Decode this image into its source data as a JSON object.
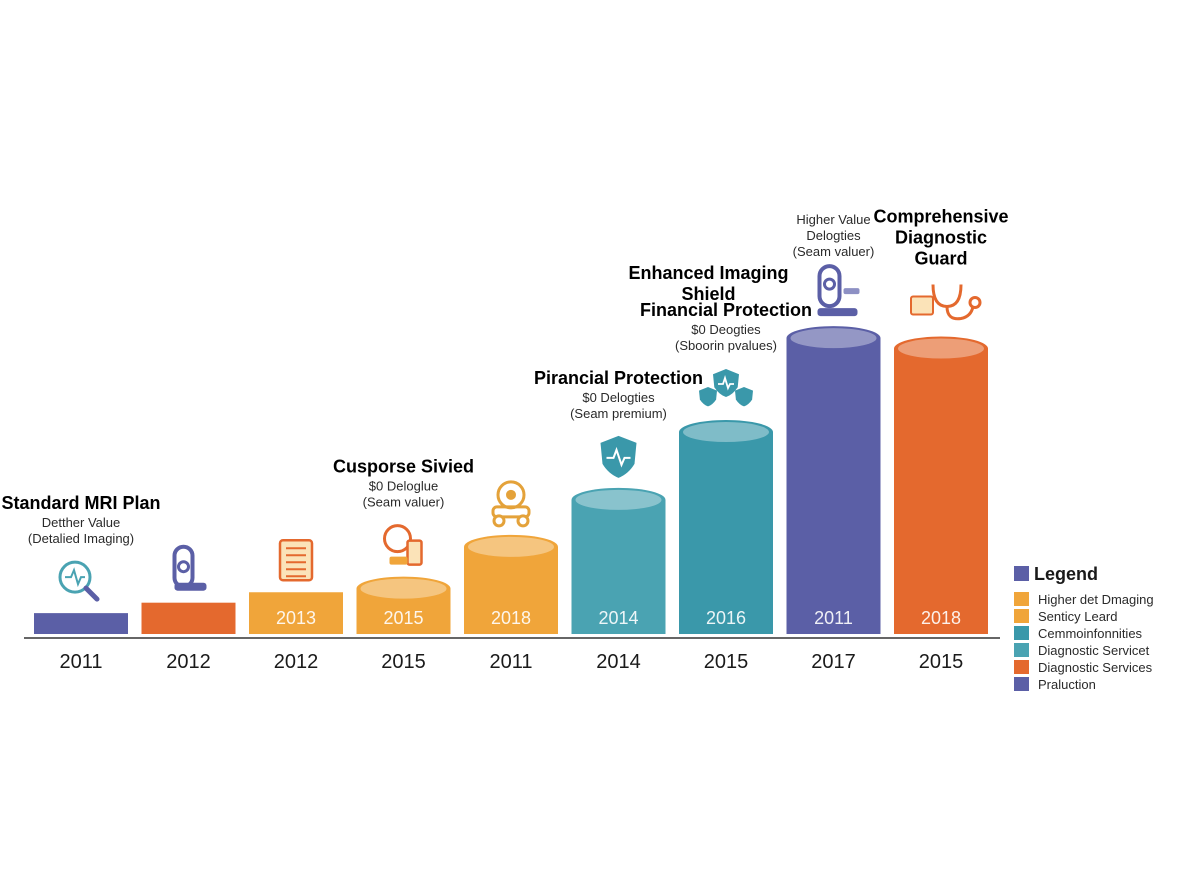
{
  "chart_data": {
    "type": "bar",
    "title": "",
    "xlabel": "",
    "ylabel": "",
    "categories": [
      "2011",
      "2012",
      "2012",
      "2015",
      "2011",
      "2014",
      "2015",
      "2017",
      "2015"
    ],
    "bar_labels": [
      "",
      "",
      "2013",
      "2015",
      "2018",
      "2014",
      "2016",
      "2011",
      "2018"
    ],
    "values": [
      2,
      3,
      4,
      5.5,
      9.5,
      14,
      20.5,
      29.5,
      28.5
    ],
    "ylim": [
      0,
      32
    ],
    "colors": [
      "#5b5fa6",
      "#e4692e",
      "#f0a53a",
      "#f0a53a",
      "#f0a53a",
      "#4aa3b2",
      "#3a98aa",
      "#5b5fa6",
      "#e4692e"
    ],
    "annotations": [
      {
        "title_lines": [
          "Standard MRI Plan"
        ],
        "sub_lines": [
          "Detther Value",
          "(Detalied Imaging)"
        ],
        "icon": "magnifier-heartbeat-icon"
      },
      {
        "title_lines": [],
        "sub_lines": [],
        "icon": "mri-scanner-icon"
      },
      {
        "title_lines": [],
        "sub_lines": [],
        "icon": "document-list-icon"
      },
      {
        "title_lines": [
          "Cusporse Sivied"
        ],
        "sub_lines": [
          "$0 Deloglue",
          "(Seam valuer)"
        ],
        "icon": "scanner-figure-icon"
      },
      {
        "title_lines": [],
        "sub_lines": [],
        "icon": "machine-icon"
      },
      {
        "title_lines": [
          "Pirancial Protection"
        ],
        "sub_lines": [
          "$0 Delogties",
          "(Seam premium)"
        ],
        "icon": "shield-heartbeat-icon"
      },
      {
        "title_lines": [
          "Financial Protection"
        ],
        "sub_lines": [
          "$0 Deogties",
          "(Sboorin pvalues)"
        ],
        "icon": "triple-shield-icon"
      },
      {
        "title_lines": [
          "Enhanced Imaging",
          "Shield"
        ],
        "sub_lines": [
          "Higher Value",
          "Delogties",
          "(Seam valuer)"
        ],
        "icon": "mri-machine-icon"
      },
      {
        "title_lines": [
          "Comprehensive",
          "Diagnostic",
          "Guard"
        ],
        "sub_lines": [],
        "icon": "stethoscope-icon"
      }
    ],
    "legend": {
      "title": "Legend",
      "position": "right",
      "items": [
        {
          "label": "Higher det Dmaging",
          "color": "#f0a53a"
        },
        {
          "label": "Senticy Leard",
          "color": "#f0a53a"
        },
        {
          "label": "Cemmoinfonnities",
          "color": "#3a98aa"
        },
        {
          "label": "Diagnostic Servicet",
          "color": "#4aa3b2"
        },
        {
          "label": "Diagnostic Services",
          "color": "#e4692e"
        },
        {
          "label": "Praluction",
          "color": "#5b5fa6"
        }
      ],
      "title_color": "#5b5fa6"
    }
  }
}
